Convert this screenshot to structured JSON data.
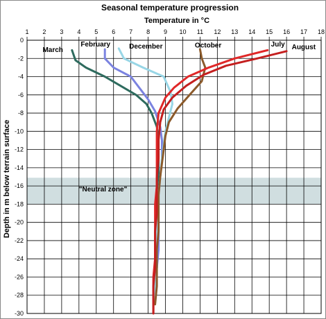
{
  "chart_data": {
    "type": "line",
    "title": "Seasonal temperature progression",
    "xlabel": "Temperature in °C",
    "ylabel": "Depth in m below terrain surface",
    "xlim": [
      1,
      18
    ],
    "ylim": [
      -30,
      0
    ],
    "x_ticks": [
      1,
      2,
      3,
      4,
      5,
      6,
      7,
      8,
      9,
      10,
      11,
      12,
      13,
      14,
      15,
      16,
      17,
      18
    ],
    "y_ticks": [
      0,
      -2,
      -4,
      -6,
      -8,
      -10,
      -12,
      -14,
      -16,
      -18,
      -20,
      -22,
      -24,
      -26,
      -28,
      -30
    ],
    "x_axis_position": "top",
    "grid": true,
    "shaded_band": {
      "y_from": -15.1,
      "y_to": -18,
      "label": "\"Neutral zone\"",
      "color": "#c8d8da"
    },
    "series": [
      {
        "name": "March",
        "color": "#2e6b5e",
        "points": [
          [
            3.6,
            -1.1
          ],
          [
            3.8,
            -2.2
          ],
          [
            4.4,
            -3
          ],
          [
            5.5,
            -4
          ],
          [
            6.4,
            -5
          ],
          [
            7.3,
            -6
          ],
          [
            7.9,
            -7
          ],
          [
            8.2,
            -8
          ],
          [
            8.5,
            -9.5
          ],
          [
            8.6,
            -11
          ],
          [
            8.6,
            -13
          ],
          [
            8.6,
            -15
          ],
          [
            8.5,
            -17
          ],
          [
            8.5,
            -19
          ],
          [
            8.5,
            -21
          ],
          [
            8.5,
            -23
          ],
          [
            8.5,
            -25
          ],
          [
            8.4,
            -27
          ],
          [
            8.4,
            -28.5
          ]
        ]
      },
      {
        "name": "February",
        "color": "#7b83e0",
        "points": [
          [
            5.5,
            -1
          ],
          [
            5.5,
            -2
          ],
          [
            6.0,
            -3
          ],
          [
            7.0,
            -4
          ],
          [
            7.6,
            -5.5
          ],
          [
            8.0,
            -6.5
          ],
          [
            8.4,
            -7.8
          ],
          [
            8.7,
            -9.5
          ],
          [
            8.8,
            -11
          ],
          [
            8.8,
            -13
          ],
          [
            8.7,
            -15
          ],
          [
            8.6,
            -17
          ],
          [
            8.6,
            -19
          ],
          [
            8.6,
            -21
          ],
          [
            8.6,
            -23
          ],
          [
            8.5,
            -25
          ],
          [
            8.4,
            -27
          ],
          [
            8.3,
            -28.7
          ]
        ]
      },
      {
        "name": "December",
        "color": "#98d6e6",
        "points": [
          [
            6.3,
            -0.9
          ],
          [
            6.6,
            -2
          ],
          [
            7.7,
            -3
          ],
          [
            8.9,
            -4
          ],
          [
            9.3,
            -5.7
          ],
          [
            9.4,
            -7
          ],
          [
            9.2,
            -8.5
          ],
          [
            9.0,
            -10
          ],
          [
            8.9,
            -11.5
          ],
          [
            8.8,
            -13
          ],
          [
            8.7,
            -15
          ],
          [
            8.6,
            -17
          ],
          [
            8.6,
            -19
          ],
          [
            8.5,
            -21
          ],
          [
            8.5,
            -23
          ],
          [
            8.4,
            -25
          ],
          [
            8.4,
            -27
          ],
          [
            8.3,
            -29
          ]
        ]
      },
      {
        "name": "October",
        "color": "#8b5a2b",
        "points": [
          [
            11.0,
            -1
          ],
          [
            11.1,
            -2
          ],
          [
            11.3,
            -3
          ],
          [
            11.1,
            -4.5
          ],
          [
            10.4,
            -6
          ],
          [
            9.7,
            -7.5
          ],
          [
            9.2,
            -9
          ],
          [
            9.0,
            -10.5
          ],
          [
            8.9,
            -12
          ],
          [
            8.8,
            -13.5
          ],
          [
            8.7,
            -15
          ],
          [
            8.6,
            -17
          ],
          [
            8.6,
            -19
          ],
          [
            8.6,
            -21
          ],
          [
            8.5,
            -23
          ],
          [
            8.5,
            -25
          ],
          [
            8.5,
            -27
          ],
          [
            8.4,
            -29
          ]
        ]
      },
      {
        "name": "July",
        "color": "#e02828",
        "points": [
          [
            14.9,
            -1.1
          ],
          [
            13.0,
            -2
          ],
          [
            11.5,
            -3
          ],
          [
            10.3,
            -4
          ],
          [
            9.5,
            -5.2
          ],
          [
            9.0,
            -6.3
          ],
          [
            8.6,
            -8
          ],
          [
            8.5,
            -10
          ],
          [
            8.5,
            -12
          ],
          [
            8.5,
            -14
          ],
          [
            8.5,
            -16
          ],
          [
            8.4,
            -18
          ],
          [
            8.4,
            -20
          ],
          [
            8.4,
            -22
          ],
          [
            8.4,
            -24
          ],
          [
            8.3,
            -26
          ],
          [
            8.3,
            -28
          ],
          [
            8.3,
            -30
          ]
        ]
      },
      {
        "name": "August",
        "color": "#c41f1f",
        "points": [
          [
            16.0,
            -1.2
          ],
          [
            14.3,
            -2
          ],
          [
            12.5,
            -2.8
          ],
          [
            11.2,
            -3.8
          ],
          [
            10.2,
            -5
          ],
          [
            9.4,
            -6.3
          ],
          [
            8.9,
            -7.6
          ],
          [
            8.7,
            -9
          ],
          [
            8.6,
            -11
          ],
          [
            8.6,
            -13
          ],
          [
            8.5,
            -15
          ],
          [
            8.5,
            -17
          ],
          [
            8.5,
            -19
          ],
          [
            8.4,
            -21
          ],
          [
            8.4,
            -23
          ],
          [
            8.4,
            -25
          ],
          [
            8.3,
            -27
          ],
          [
            8.3,
            -30
          ]
        ]
      }
    ]
  }
}
